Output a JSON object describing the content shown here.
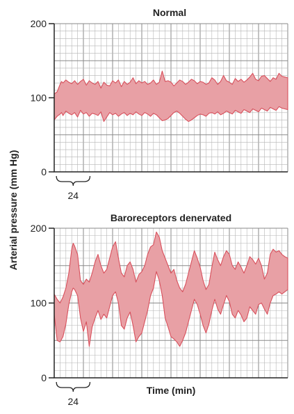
{
  "chart_data": [
    {
      "type": "area",
      "title": "Normal",
      "ylabel": "Arterial pressure (mm Hg)",
      "ylim": [
        0,
        200
      ],
      "yticks": [
        0,
        100,
        200
      ],
      "bracket_label": "24",
      "colors": {
        "fill": "#e8a0a5",
        "stroke": "#d8505c"
      },
      "series": [
        {
          "x": [
            0,
            2,
            4,
            5,
            6,
            8,
            10,
            12,
            14,
            16,
            18,
            20,
            22,
            24,
            26,
            28,
            30,
            32,
            34,
            36,
            38,
            40,
            42,
            44,
            46,
            48,
            50,
            52,
            54,
            56,
            58,
            60,
            62,
            64,
            66,
            68,
            70,
            72,
            74,
            76,
            78,
            80,
            82,
            84,
            86,
            88,
            90,
            92,
            94,
            96,
            98,
            100,
            102,
            104,
            106,
            108,
            110,
            112,
            114,
            116,
            118,
            120,
            122,
            124,
            126,
            128,
            130,
            132,
            134,
            136,
            138,
            140,
            142,
            144,
            146,
            148,
            150,
            152,
            154,
            156,
            158,
            160
          ],
          "upper": [
            105,
            108,
            118,
            122,
            120,
            124,
            121,
            119,
            123,
            118,
            122,
            125,
            117,
            123,
            120,
            118,
            122,
            113,
            121,
            117,
            116,
            123,
            120,
            124,
            115,
            122,
            118,
            121,
            127,
            119,
            123,
            120,
            122,
            118,
            120,
            124,
            118,
            121,
            136,
            122,
            123,
            121,
            116,
            120,
            124,
            122,
            118,
            121,
            125,
            123,
            119,
            122,
            121,
            118,
            120,
            127,
            124,
            118,
            122,
            130,
            123,
            121,
            118,
            126,
            122,
            125,
            121,
            124,
            128,
            133,
            125,
            123,
            129,
            130,
            126,
            122,
            127,
            125,
            133,
            129,
            128,
            127
          ],
          "lower": [
            70,
            75,
            78,
            80,
            76,
            82,
            79,
            77,
            80,
            74,
            83,
            78,
            80,
            75,
            79,
            78,
            76,
            81,
            68,
            74,
            80,
            77,
            79,
            75,
            78,
            80,
            76,
            79,
            77,
            81,
            78,
            76,
            80,
            78,
            75,
            79,
            77,
            73,
            69,
            70,
            72,
            76,
            80,
            82,
            79,
            75,
            71,
            68,
            70,
            73,
            76,
            78,
            77,
            75,
            79,
            80,
            78,
            81,
            77,
            79,
            82,
            80,
            78,
            83,
            81,
            79,
            84,
            82,
            80,
            85,
            83,
            81,
            86,
            84,
            82,
            87,
            85,
            83,
            88,
            86,
            85,
            84
          ]
        }
      ]
    },
    {
      "type": "area",
      "title": "Baroreceptors denervated",
      "xlabel": "Time (min)",
      "ylim": [
        0,
        200
      ],
      "yticks": [
        0,
        100,
        200
      ],
      "bracket_label": "24",
      "colors": {
        "fill": "#e8a0a5",
        "stroke": "#d8505c"
      },
      "series": [
        {
          "x": [
            0,
            2,
            4,
            6,
            8,
            10,
            12,
            13,
            14,
            16,
            18,
            20,
            22,
            24,
            26,
            28,
            30,
            32,
            34,
            36,
            38,
            40,
            42,
            44,
            46,
            48,
            50,
            52,
            54,
            56,
            58,
            60,
            62,
            64,
            66,
            68,
            70,
            72,
            74,
            76,
            78,
            80,
            82,
            84,
            86,
            88,
            90,
            92,
            94,
            96,
            98,
            100,
            102,
            104,
            106,
            108,
            110,
            112,
            114,
            116,
            118,
            120,
            122,
            124,
            126,
            128,
            130,
            132,
            134,
            136,
            138,
            140,
            142,
            144,
            146,
            148,
            150,
            152,
            154,
            156,
            158,
            160
          ],
          "upper": [
            112,
            105,
            100,
            108,
            120,
            140,
            172,
            180,
            176,
            165,
            130,
            125,
            132,
            128,
            140,
            155,
            165,
            150,
            140,
            145,
            160,
            175,
            182,
            160,
            140,
            135,
            150,
            155,
            145,
            128,
            138,
            142,
            150,
            165,
            175,
            178,
            195,
            188,
            170,
            160,
            150,
            140,
            145,
            130,
            120,
            115,
            125,
            140,
            155,
            170,
            160,
            148,
            130,
            118,
            125,
            148,
            168,
            158,
            150,
            162,
            170,
            165,
            150,
            145,
            155,
            148,
            140,
            150,
            162,
            158,
            152,
            160,
            150,
            132,
            140,
            165,
            172,
            168,
            170,
            165,
            162,
            160
          ],
          "lower": [
            85,
            50,
            48,
            55,
            72,
            98,
            115,
            120,
            118,
            110,
            80,
            62,
            75,
            42,
            68,
            80,
            90,
            78,
            85,
            80,
            95,
            110,
            115,
            100,
            70,
            65,
            80,
            88,
            70,
            48,
            55,
            60,
            75,
            90,
            110,
            120,
            142,
            130,
            110,
            80,
            68,
            55,
            52,
            48,
            42,
            50,
            60,
            75,
            90,
            105,
            98,
            85,
            70,
            60,
            72,
            90,
            105,
            92,
            85,
            98,
            110,
            102,
            85,
            80,
            90,
            84,
            75,
            80,
            95,
            90,
            85,
            98,
            100,
            92,
            85,
            100,
            110,
            112,
            115,
            112,
            115,
            118
          ]
        }
      ]
    }
  ]
}
